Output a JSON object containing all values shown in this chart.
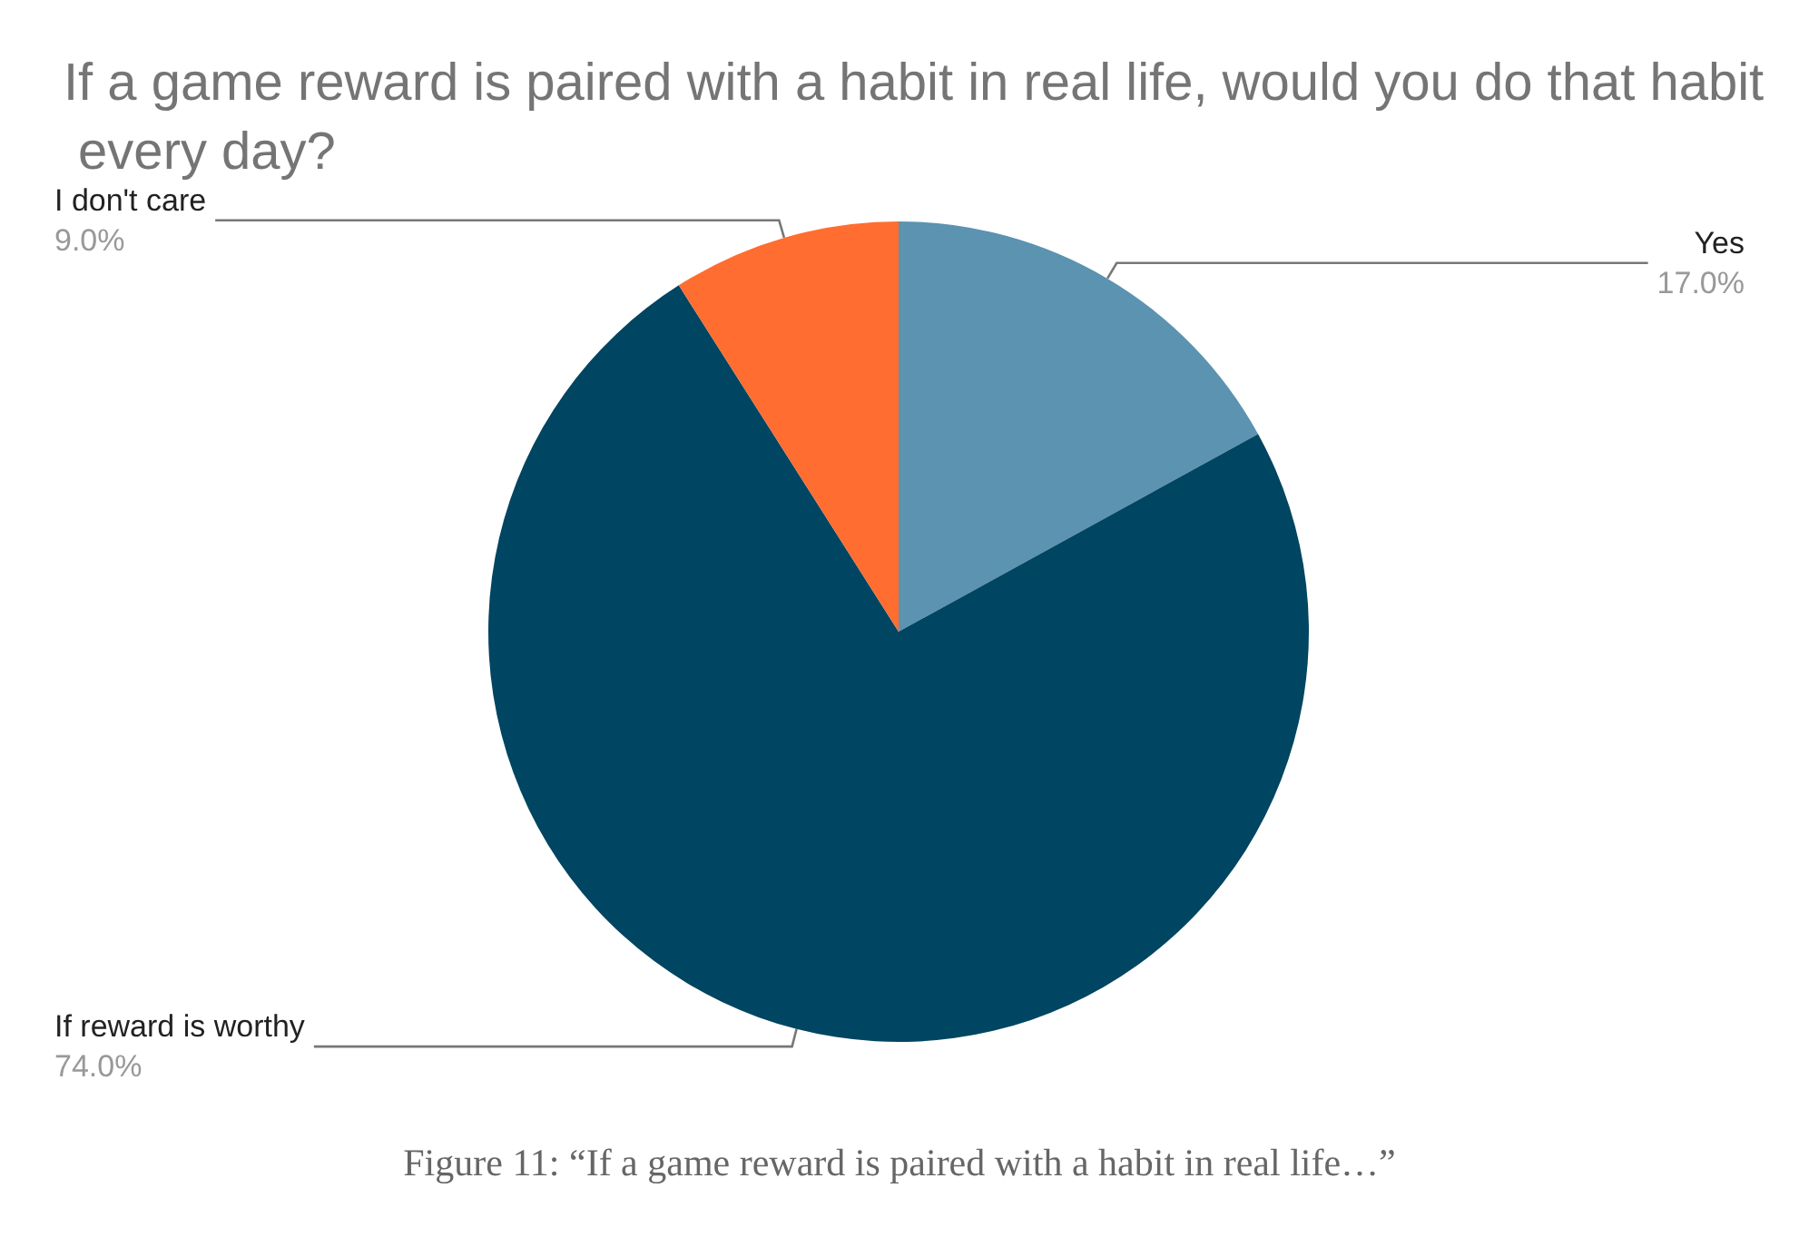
{
  "chart_data": {
    "type": "pie",
    "title": "If a game reward is paired with a habit in real life, would you do that habit every day?",
    "categories": [
      "Yes",
      "If reward is worthy",
      "I don't care"
    ],
    "values": [
      17,
      74,
      9
    ],
    "value_labels": [
      "17.0%",
      "74.0%",
      "9.0%"
    ],
    "colors": [
      "#5b93b0",
      "#004561",
      "#ff6d31"
    ],
    "annotations": [
      "Figure 11: “If a game reward is paired with a habit in real life…”"
    ]
  }
}
